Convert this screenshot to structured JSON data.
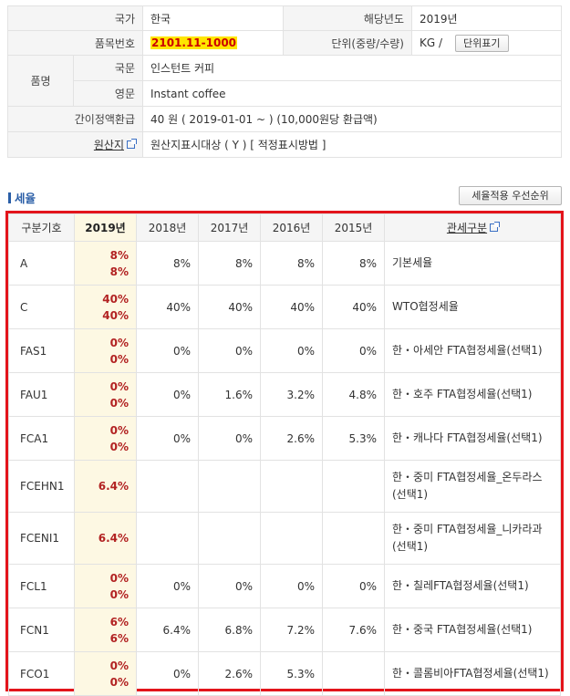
{
  "info": {
    "country_label": "국가",
    "country_value": "한국",
    "year_label": "해당년도",
    "year_value": "2019년",
    "item_no_label": "품목번호",
    "item_no_value": "2101.11-1000",
    "unit_label": "단위(중량/수량)",
    "unit_value": "KG /",
    "unit_button": "단위표기",
    "name_label": "품명",
    "kor_label": "국문",
    "kor_value": "인스턴트 커피",
    "eng_label": "영문",
    "eng_value": "Instant coffee",
    "refund_label": "간이정액환급",
    "refund_value": "40 원 ( 2019-01-01 ~ ) (10,000원당 환급액)",
    "origin_label": "원산지",
    "origin_value": "원산지표시대상 ( Y ) [ 적정표시방법 ]"
  },
  "section": {
    "title": "세율",
    "priority_button": "세율적용 우선순위"
  },
  "rates": {
    "headers": [
      "구분기호",
      "2019년",
      "2018년",
      "2017년",
      "2016년",
      "2015년",
      "관세구분"
    ],
    "rows": [
      {
        "code": "A",
        "y2019": [
          "8%",
          "8%"
        ],
        "y2018": "8%",
        "y2017": "8%",
        "y2016": "8%",
        "y2015": "8%",
        "desc": "기본세율"
      },
      {
        "code": "C",
        "y2019": [
          "40%",
          "40%"
        ],
        "y2018": "40%",
        "y2017": "40%",
        "y2016": "40%",
        "y2015": "40%",
        "desc": "WTO협정세율"
      },
      {
        "code": "FAS1",
        "y2019": [
          "0%",
          "0%"
        ],
        "y2018": "0%",
        "y2017": "0%",
        "y2016": "0%",
        "y2015": "0%",
        "desc": "한・아세안 FTA협정세율(선택1)"
      },
      {
        "code": "FAU1",
        "y2019": [
          "0%",
          "0%"
        ],
        "y2018": "0%",
        "y2017": "1.6%",
        "y2016": "3.2%",
        "y2015": "4.8%",
        "desc": "한・호주 FTA협정세율(선택1)"
      },
      {
        "code": "FCA1",
        "y2019": [
          "0%",
          "0%"
        ],
        "y2018": "0%",
        "y2017": "0%",
        "y2016": "2.6%",
        "y2015": "5.3%",
        "desc": "한・캐나다 FTA협정세율(선택1)"
      },
      {
        "code": "FCEHN1",
        "y2019": [
          "6.4%"
        ],
        "y2018": "",
        "y2017": "",
        "y2016": "",
        "y2015": "",
        "desc": "한・중미 FTA협정세율_온두라스(선택1)"
      },
      {
        "code": "FCENI1",
        "y2019": [
          "6.4%"
        ],
        "y2018": "",
        "y2017": "",
        "y2016": "",
        "y2015": "",
        "desc": "한・중미 FTA협정세율_니카라과(선택1)"
      },
      {
        "code": "FCL1",
        "y2019": [
          "0%",
          "0%"
        ],
        "y2018": "0%",
        "y2017": "0%",
        "y2016": "0%",
        "y2015": "0%",
        "desc": "한・칠레FTA협정세율(선택1)"
      },
      {
        "code": "FCN1",
        "y2019": [
          "6%",
          "6%"
        ],
        "y2018": "6.4%",
        "y2017": "6.8%",
        "y2016": "7.2%",
        "y2015": "7.6%",
        "desc": "한・중국 FTA협정세율(선택1)"
      },
      {
        "code": "FCO1",
        "y2019": [
          "0%",
          "0%"
        ],
        "y2018": "0%",
        "y2017": "2.6%",
        "y2016": "5.3%",
        "y2015": "",
        "desc": "한・콜롬비아FTA협정세율(선택1)"
      }
    ]
  }
}
